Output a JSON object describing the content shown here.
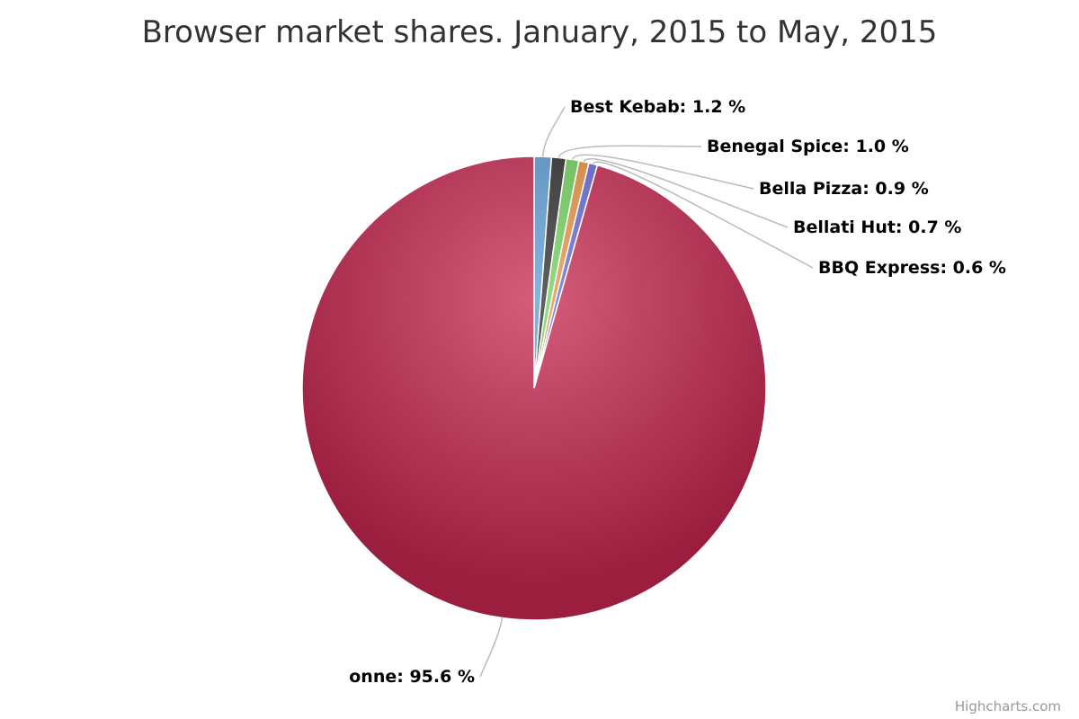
{
  "chart_data": {
    "type": "pie",
    "title": "Browser market shares. January, 2015 to May, 2015",
    "series": [
      {
        "points": [
          {
            "name": "Best Kebab",
            "value": 1.2,
            "label": "Best Kebab: 1.2 %",
            "color": "#5b9bd5"
          },
          {
            "name": "Benegal Spice",
            "value": 1.0,
            "label": "Benegal Spice: 1.0 %",
            "color": "#2b2b2b"
          },
          {
            "name": "Bella Pizza",
            "value": 0.9,
            "label": "Bella Pizza: 0.9 %",
            "color": "#6fd25a"
          },
          {
            "name": "Bellati Hut",
            "value": 0.7,
            "label": "Bellati Hut: 0.7 %",
            "color": "#e8913e"
          },
          {
            "name": "BBQ Express",
            "value": 0.6,
            "label": "BBQ Express: 0.6 %",
            "color": "#6367d6"
          },
          {
            "name": "onne",
            "value": 95.6,
            "label": "onne: 95.6 %",
            "color": "#c7264f"
          }
        ]
      }
    ],
    "legend": "none"
  },
  "credits": "Highcharts.com"
}
